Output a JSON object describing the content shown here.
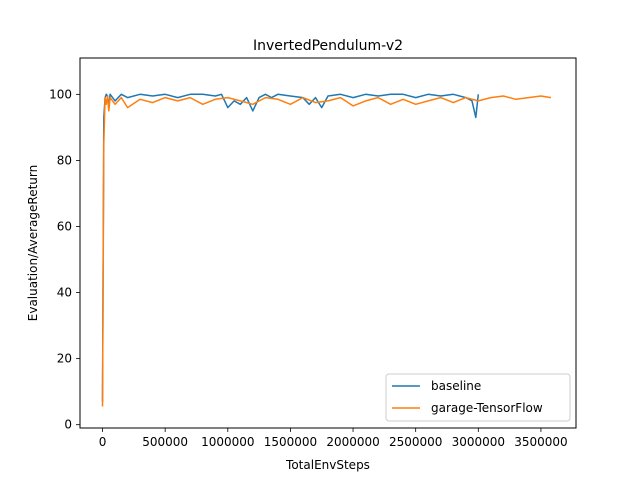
{
  "chart_data": {
    "type": "line",
    "title": "InvertedPendulum-v2",
    "xlabel": "TotalEnvSteps",
    "ylabel": "Evaluation/AverageReturn",
    "xlim": [
      -180000,
      3780000
    ],
    "ylim": [
      -1,
      111
    ],
    "xticks": [
      0,
      500000,
      1000000,
      1500000,
      2000000,
      2500000,
      3000000,
      3500000
    ],
    "xtick_labels": [
      "0",
      "500000",
      "1000000",
      "1500000",
      "2000000",
      "2500000",
      "3000000",
      "3500000"
    ],
    "yticks": [
      0,
      20,
      40,
      60,
      80,
      100
    ],
    "ytick_labels": [
      "0",
      "20",
      "40",
      "60",
      "80",
      "100"
    ],
    "grid": false,
    "legend_position": "bottom-right",
    "series": [
      {
        "name": "baseline",
        "color": "#1f77b4",
        "x": [
          0,
          10000,
          20000,
          30000,
          40000,
          50000,
          60000,
          80000,
          100000,
          150000,
          200000,
          300000,
          400000,
          500000,
          600000,
          700000,
          800000,
          900000,
          950000,
          1000000,
          1050000,
          1100000,
          1150000,
          1200000,
          1250000,
          1300000,
          1350000,
          1400000,
          1500000,
          1600000,
          1650000,
          1700000,
          1750000,
          1800000,
          1900000,
          2000000,
          2100000,
          2200000,
          2300000,
          2400000,
          2500000,
          2600000,
          2700000,
          2800000,
          2900000,
          2950000,
          2980000,
          3000000
        ],
        "y": [
          7,
          93,
          99,
          100,
          99.5,
          96,
          100,
          99,
          98,
          100,
          99,
          100,
          99.5,
          100,
          99,
          100,
          100,
          99.5,
          100,
          96,
          98,
          97,
          99,
          95,
          99,
          100,
          99,
          100,
          99.5,
          99,
          97,
          99,
          96,
          99.5,
          100,
          99,
          100,
          99.5,
          100,
          100,
          99,
          100,
          99.5,
          100,
          99,
          98,
          93,
          100
        ]
      },
      {
        "name": "garage-TensorFlow",
        "color": "#ff7f0e",
        "x": [
          0,
          10000,
          20000,
          30000,
          40000,
          50000,
          60000,
          80000,
          100000,
          150000,
          200000,
          300000,
          400000,
          500000,
          600000,
          700000,
          800000,
          900000,
          1000000,
          1100000,
          1200000,
          1300000,
          1400000,
          1500000,
          1600000,
          1700000,
          1800000,
          1900000,
          2000000,
          2100000,
          2200000,
          2300000,
          2400000,
          2500000,
          2600000,
          2700000,
          2800000,
          2900000,
          3000000,
          3100000,
          3200000,
          3300000,
          3400000,
          3500000,
          3580000
        ],
        "y": [
          5.5,
          85,
          99,
          97,
          99.5,
          95,
          99,
          98,
          97,
          99,
          96,
          98.5,
          97.5,
          99,
          98,
          99,
          97,
          98.5,
          99,
          98,
          97,
          99,
          98.5,
          97,
          99,
          97.5,
          98,
          99,
          96.5,
          98,
          99,
          97,
          98.5,
          97,
          98,
          99,
          97.5,
          99,
          98,
          99,
          99.5,
          98.5,
          99,
          99.5,
          99
        ]
      }
    ]
  }
}
